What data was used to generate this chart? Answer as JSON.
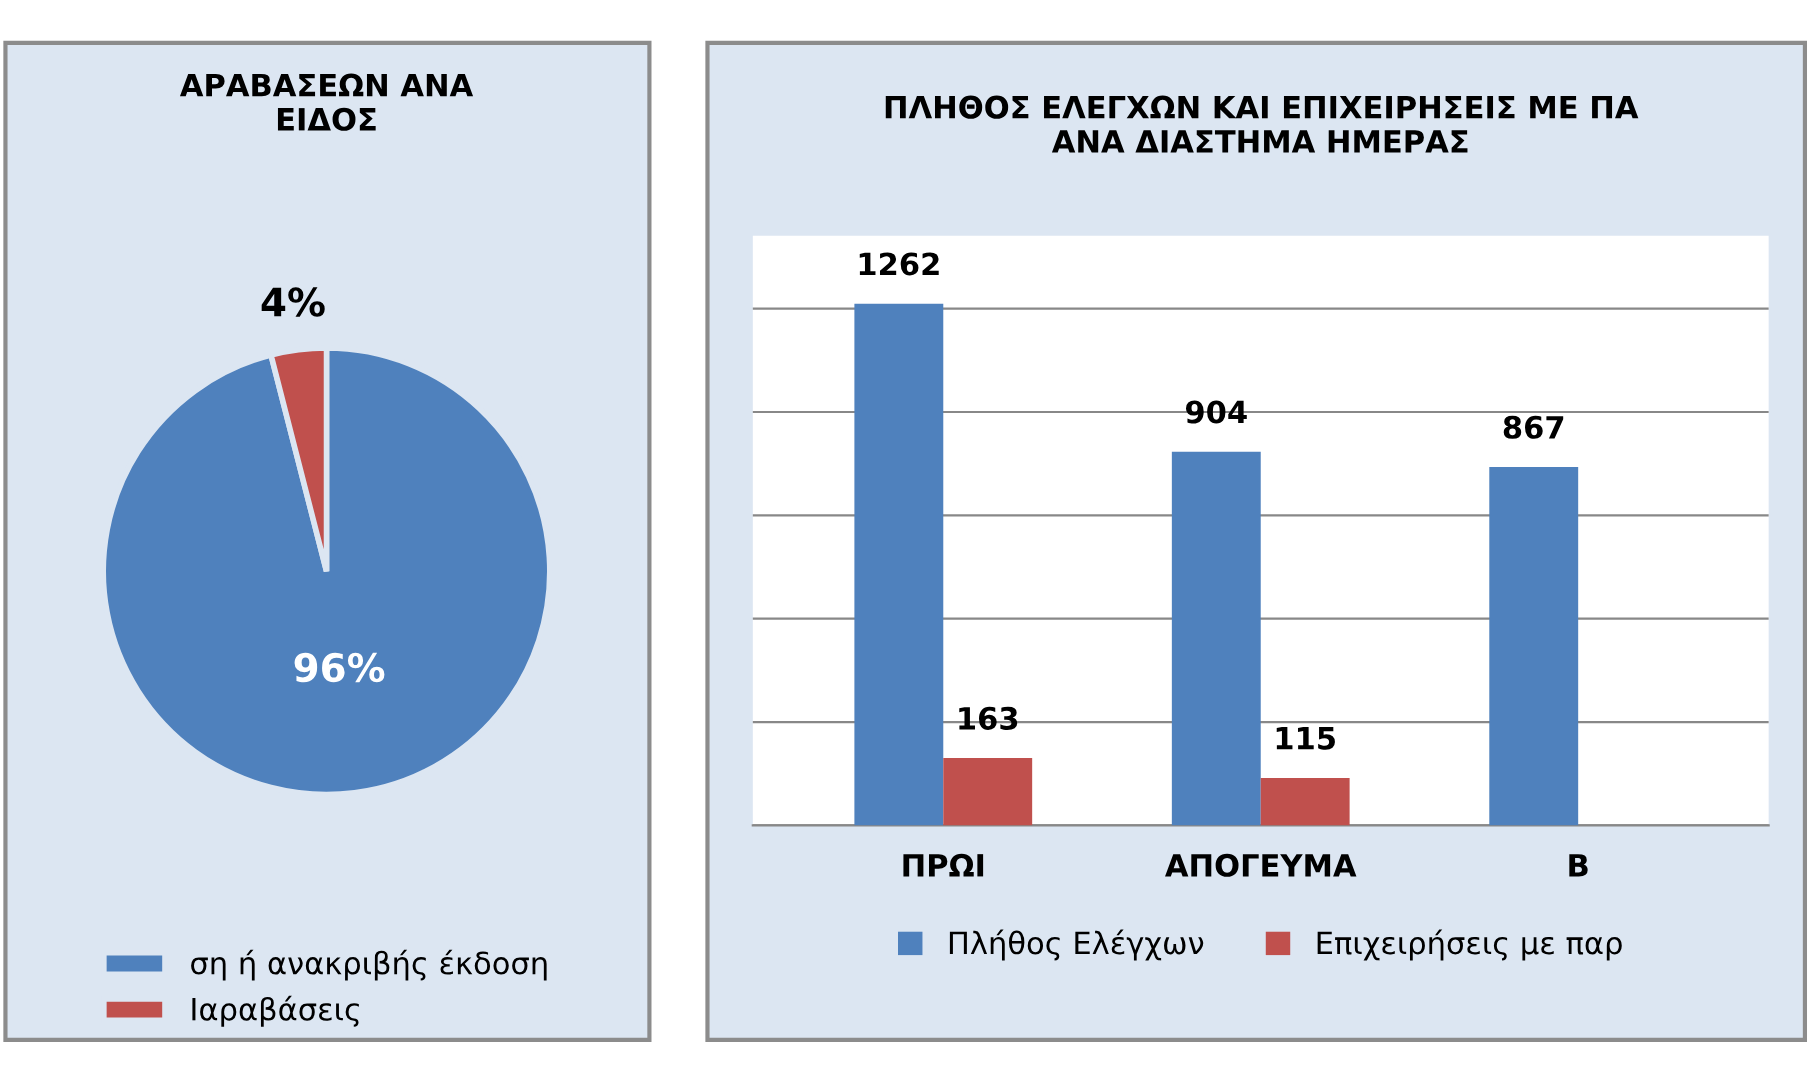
{
  "chart_data": [
    {
      "type": "pie",
      "title": "ΑΡΑΒΑΣΕΩΝ ΑΝΑ\nΕΙΔΟΣ",
      "categories": [
        "ση ή ανακριβής έκδοση",
        "Ιαραβάσεις"
      ],
      "values": [
        96,
        4
      ],
      "value_labels": [
        "96%",
        "4%"
      ],
      "colors": [
        "#4f81bd",
        "#c0504d"
      ],
      "legend": "bottom"
    },
    {
      "type": "bar",
      "title": "ΠΛΗΘΟΣ ΕΛΕΓΧΩΝ ΚΑΙ ΕΠΙΧΕΙΡΗΣΕΙΣ ΜΕ ΠΑ\nΑΝΑ ΔΙΑΣΤΗΜΑ ΗΜΕΡΑΣ",
      "categories": [
        "ΠΡΩΙ",
        "ΑΠΟΓΕΥΜΑ",
        "Β"
      ],
      "series": [
        {
          "name": "Πλήθος Ελέγχων",
          "color": "#4f81bd",
          "values": [
            1262,
            904,
            867
          ]
        },
        {
          "name": "Επιχειρήσεις με παρ",
          "color": "#c0504d",
          "values": [
            163,
            115,
            null
          ]
        }
      ],
      "data_labels": true,
      "grid": "y",
      "tick_labels": "x",
      "legend": "bottom"
    }
  ]
}
